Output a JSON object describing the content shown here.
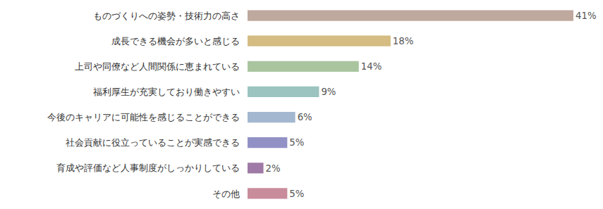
{
  "chart_data": {
    "type": "bar",
    "orientation": "horizontal",
    "categories": [
      "ものづくりへの姿勢・技術力の高さ",
      "成長できる機会が多いと感じる",
      "上司や同僚など人間関係に恵まれている",
      "福利厚生が充実しており働きやすい",
      "今後のキャリアに可能性を感じることができる",
      "社会貢献に役立っていることが実感できる",
      "育成や評価など人事制度がしっかりしている",
      "その他"
    ],
    "values": [
      41,
      18,
      14,
      9,
      6,
      5,
      2,
      5
    ],
    "value_labels": [
      "41%",
      "18%",
      "14%",
      "9%",
      "6%",
      "5%",
      "2%",
      "5%"
    ],
    "colors": [
      "#bfa89e",
      "#d4bc82",
      "#a9c5a0",
      "#9bc3c0",
      "#a3b8d0",
      "#9191c6",
      "#a07aa6",
      "#c98c9a"
    ],
    "xlim": [
      0,
      41
    ],
    "data_labels": true,
    "tick_labels": "y",
    "grid": false
  }
}
